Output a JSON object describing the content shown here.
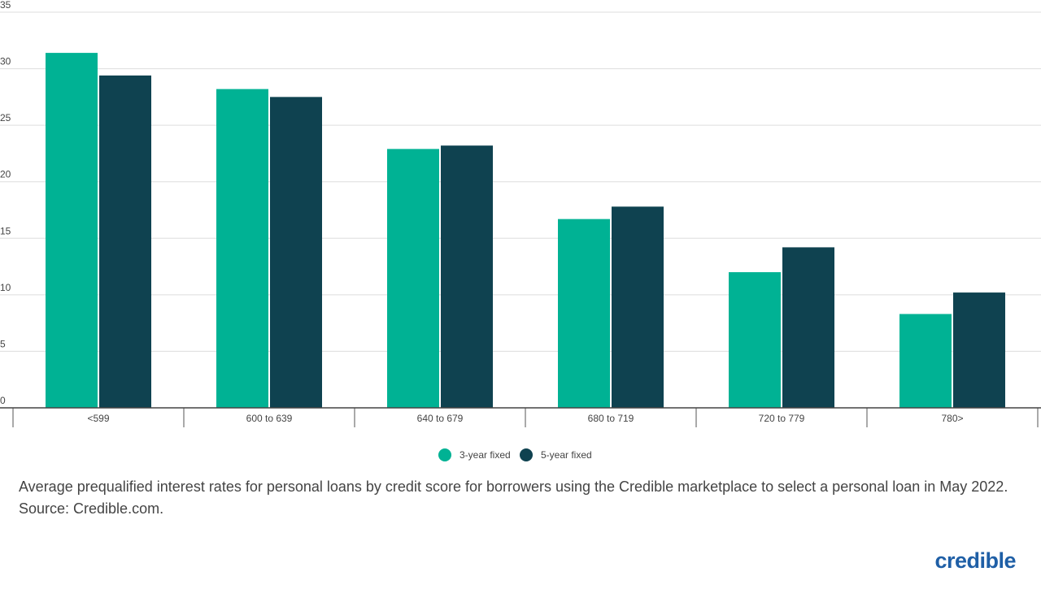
{
  "chart_data": {
    "type": "bar",
    "categories": [
      "<599",
      "600 to 639",
      "640 to 679",
      "680 to 719",
      "720 to 779",
      "780>"
    ],
    "series": [
      {
        "name": "3-year fixed",
        "color": "#00b294",
        "values": [
          31.4,
          28.2,
          22.9,
          16.7,
          12.0,
          8.3
        ]
      },
      {
        "name": "5-year fixed",
        "color": "#0f4250",
        "values": [
          29.4,
          27.5,
          23.2,
          17.8,
          14.2,
          10.2
        ]
      }
    ],
    "ylim": [
      0,
      35
    ],
    "yticks": [
      0,
      5,
      10,
      15,
      20,
      25,
      30,
      35
    ],
    "grid": true,
    "caption": [
      "Average prequalified interest rates for personal loans by credit score for borrowers using the Credible marketplace to select a personal loan in May 2022.",
      "Source: Credible.com."
    ]
  },
  "brand": "credible"
}
